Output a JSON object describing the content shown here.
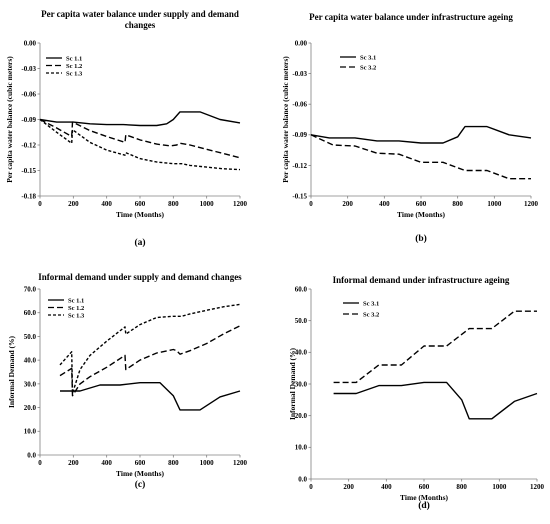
{
  "chart_data": [
    {
      "panel": "(a)",
      "type": "line",
      "title": "Per capita water balance under supply and demand changes",
      "title_lines": [
        "Per capita water balance under supply and demand",
        "changes"
      ],
      "xlabel": "Time (Months)",
      "ylabel": "Per capita water balance (cubic meters)",
      "xlim": [
        0,
        1200
      ],
      "ylim": [
        -0.18,
        0.0
      ],
      "xticks": [
        0,
        200,
        400,
        600,
        800,
        1000,
        1200
      ],
      "yticks": [
        0.0,
        -0.03,
        -0.06,
        -0.09,
        -0.12,
        -0.15,
        -0.18
      ],
      "ytick_labels": [
        "0.00",
        "-0.03",
        "-0.06",
        "-0.09",
        "-0.12",
        "-0.15",
        "-0.18"
      ],
      "legend": "top-left",
      "series": [
        {
          "name": "Sc 1.1",
          "style": "solid",
          "x": [
            0,
            100,
            200,
            300,
            400,
            500,
            600,
            700,
            760,
            800,
            840,
            960,
            1080,
            1200
          ],
          "y": [
            -0.09,
            -0.093,
            -0.093,
            -0.095,
            -0.096,
            -0.096,
            -0.097,
            -0.097,
            -0.095,
            -0.09,
            -0.081,
            -0.081,
            -0.09,
            -0.094
          ]
        },
        {
          "name": "Sc 1.2",
          "style": "dash",
          "x": [
            0,
            100,
            190,
            195,
            300,
            400,
            510,
            515,
            600,
            700,
            780,
            820,
            840,
            900,
            1000,
            1100,
            1200
          ],
          "y": [
            -0.09,
            -0.1,
            -0.11,
            -0.093,
            -0.103,
            -0.11,
            -0.117,
            -0.108,
            -0.114,
            -0.119,
            -0.121,
            -0.12,
            -0.118,
            -0.12,
            -0.125,
            -0.13,
            -0.135
          ]
        },
        {
          "name": "Sc 1.3",
          "style": "shortdash",
          "x": [
            0,
            100,
            190,
            195,
            300,
            400,
            510,
            515,
            600,
            700,
            800,
            850,
            900,
            1000,
            1100,
            1200
          ],
          "y": [
            -0.09,
            -0.105,
            -0.118,
            -0.102,
            -0.117,
            -0.126,
            -0.132,
            -0.129,
            -0.136,
            -0.14,
            -0.142,
            -0.142,
            -0.144,
            -0.146,
            -0.148,
            -0.149
          ]
        }
      ]
    },
    {
      "panel": "(b)",
      "type": "line",
      "title": "Per capita water balance under infrastructure ageing",
      "title_lines": [
        "Per capita water balance under infrastructure ageing"
      ],
      "xlabel": "Time (Months)",
      "ylabel": "Per capita water balance (cubic meters)",
      "xlim": [
        0,
        1200
      ],
      "ylim": [
        -0.15,
        0.0
      ],
      "xticks": [
        0,
        200,
        400,
        600,
        800,
        1000,
        1200
      ],
      "yticks": [
        0.0,
        -0.03,
        -0.06,
        -0.09,
        -0.12,
        -0.15
      ],
      "ytick_labels": [
        "0.00",
        "-0.03",
        "-0.06",
        "-0.09",
        "-0.12",
        "-0.15"
      ],
      "legend": "top-left",
      "series": [
        {
          "name": "Sc 3.1",
          "style": "solid",
          "x": [
            0,
            100,
            240,
            360,
            480,
            600,
            720,
            800,
            840,
            960,
            1080,
            1200
          ],
          "y": [
            -0.09,
            -0.093,
            -0.093,
            -0.096,
            -0.096,
            -0.098,
            -0.098,
            -0.092,
            -0.082,
            -0.082,
            -0.09,
            -0.093
          ]
        },
        {
          "name": "Sc 3.2",
          "style": "dash",
          "x": [
            0,
            120,
            240,
            360,
            480,
            600,
            720,
            840,
            960,
            1080,
            1200
          ],
          "y": [
            -0.09,
            -0.1,
            -0.101,
            -0.108,
            -0.109,
            -0.117,
            -0.117,
            -0.125,
            -0.125,
            -0.133,
            -0.133
          ]
        }
      ]
    },
    {
      "panel": "(c)",
      "type": "line",
      "title": "Informal demand under supply and demand changes",
      "title_lines": [
        "Informal demand under supply and demand changes"
      ],
      "xlabel": "Time (Months)",
      "ylabel": "Informal Demand (%)",
      "xlim": [
        0,
        1200
      ],
      "ylim": [
        0,
        70
      ],
      "xticks": [
        0,
        200,
        400,
        600,
        800,
        1000,
        1200
      ],
      "yticks": [
        0,
        10,
        20,
        30,
        40,
        50,
        60,
        70
      ],
      "ytick_labels": [
        "0.0",
        "10.0",
        "20.0",
        "30.0",
        "40.0",
        "50.0",
        "60.0",
        "70.0"
      ],
      "legend": "top-left",
      "series": [
        {
          "name": "Sc 1.1",
          "style": "solid",
          "x": [
            120,
            240,
            360,
            480,
            600,
            720,
            800,
            840,
            960,
            1080,
            1200
          ],
          "y": [
            27,
            27,
            29.5,
            29.5,
            30.5,
            30.5,
            25,
            19,
            19,
            24.5,
            27
          ]
        },
        {
          "name": "Sc 1.2",
          "style": "dash",
          "x": [
            120,
            190,
            195,
            240,
            300,
            400,
            510,
            515,
            600,
            700,
            800,
            820,
            840,
            900,
            1000,
            1100,
            1200
          ],
          "y": [
            33.5,
            36.5,
            25,
            30,
            33,
            37,
            42,
            36,
            40,
            43,
            44.5,
            44,
            42.5,
            44,
            47,
            51,
            54.5
          ]
        },
        {
          "name": "Sc 1.3",
          "style": "shortdash",
          "x": [
            120,
            190,
            195,
            240,
            300,
            400,
            510,
            515,
            600,
            700,
            800,
            850,
            900,
            1000,
            1100,
            1200
          ],
          "y": [
            38,
            43.5,
            26,
            36,
            42,
            48,
            54,
            51,
            55,
            58,
            58.5,
            58.5,
            59.5,
            61,
            62.5,
            63.5
          ]
        }
      ]
    },
    {
      "panel": "(d)",
      "type": "line",
      "title": "Informal demand under infrastructure ageing",
      "title_lines": [
        "Informal demand under infrastructure ageing"
      ],
      "xlabel": "Time (Months)",
      "ylabel": "Informal Demand (%)",
      "xlim": [
        0,
        1200
      ],
      "ylim": [
        0,
        60
      ],
      "xticks": [
        0,
        200,
        400,
        600,
        800,
        1000,
        1200
      ],
      "yticks": [
        0,
        10,
        20,
        30,
        40,
        50,
        60
      ],
      "ytick_labels": [
        "0.0",
        "10.0",
        "20.0",
        "30.0",
        "40.0",
        "50.0",
        "60.0"
      ],
      "legend": "top-left",
      "series": [
        {
          "name": "Sc 3.1",
          "style": "solid",
          "x": [
            120,
            240,
            360,
            480,
            600,
            720,
            800,
            840,
            960,
            1080,
            1200
          ],
          "y": [
            27,
            27,
            29.5,
            29.5,
            30.5,
            30.5,
            25,
            19,
            19,
            24.5,
            27
          ]
        },
        {
          "name": "Sc 3.2",
          "style": "dash",
          "x": [
            120,
            240,
            360,
            480,
            600,
            720,
            840,
            960,
            1080,
            1200
          ],
          "y": [
            30.5,
            30.5,
            36,
            36,
            42,
            42,
            47.5,
            47.5,
            53,
            53
          ]
        }
      ]
    }
  ]
}
